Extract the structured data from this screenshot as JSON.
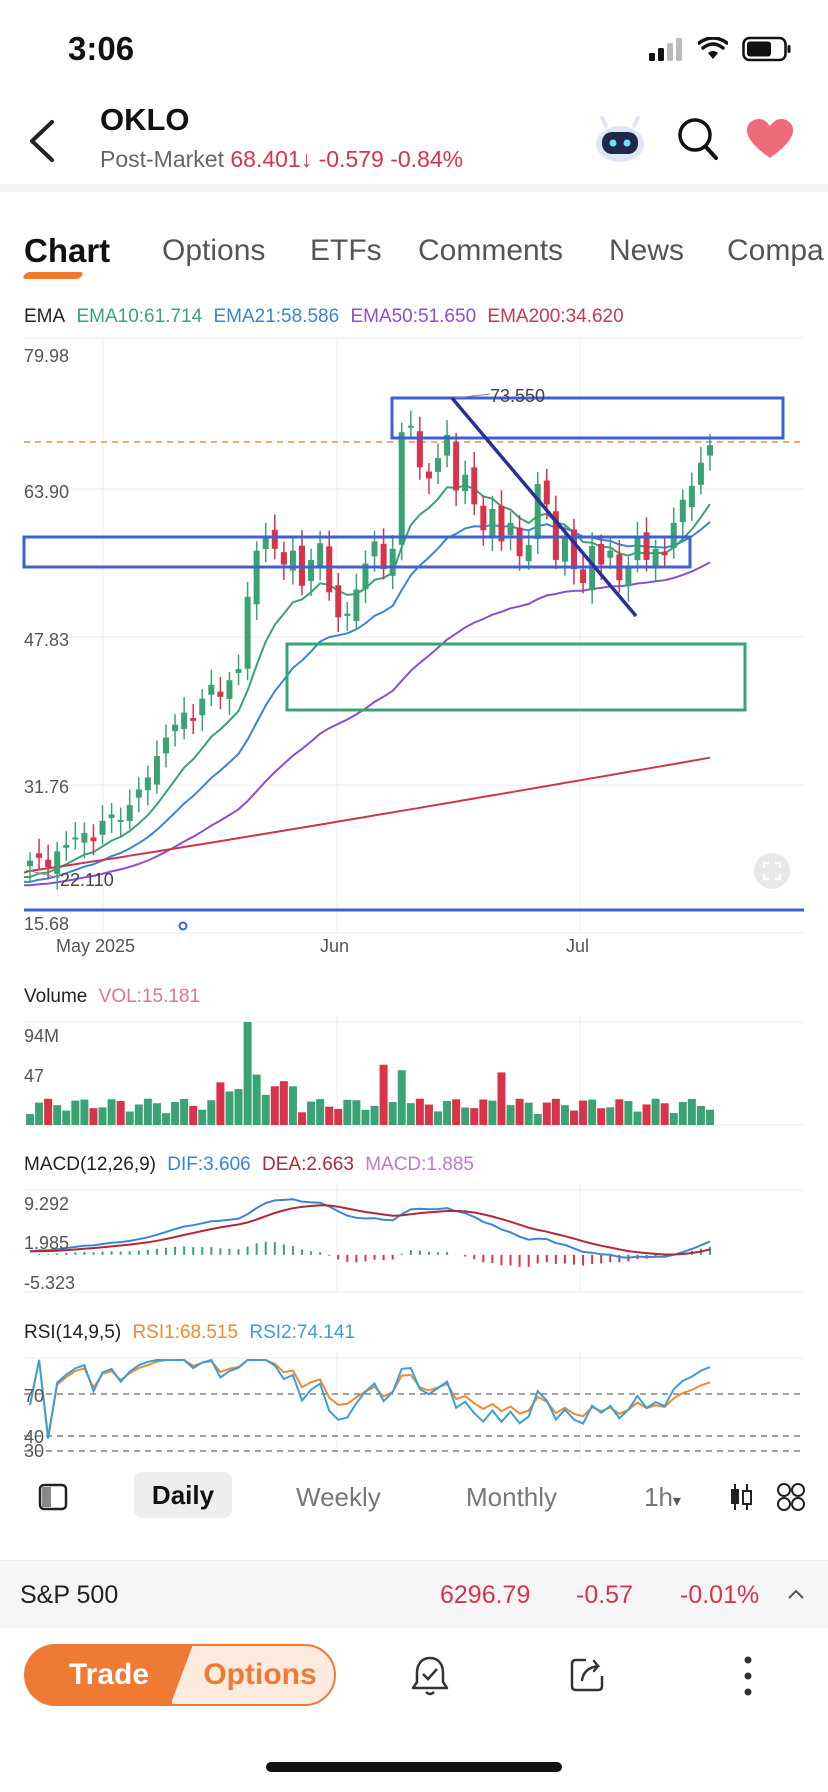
{
  "status": {
    "time": "3:06"
  },
  "header": {
    "ticker": "OKLO",
    "session_label": "Post-Market",
    "price": "68.401",
    "change": "-0.579",
    "change_pct": "-0.84%"
  },
  "tabs": [
    "Chart",
    "Options",
    "ETFs",
    "Comments",
    "News",
    "Compa"
  ],
  "ema": {
    "label": "EMA",
    "ema10": "EMA10:61.714",
    "ema21": "EMA21:58.586",
    "ema50": "EMA50:51.650",
    "ema200": "EMA200:34.620"
  },
  "price_axis": [
    "79.98",
    "63.90",
    "47.83",
    "31.76",
    "15.68"
  ],
  "date_axis": [
    "May 2025",
    "Jun",
    "Jul"
  ],
  "annotations": {
    "high": "73.550",
    "low": "22.110"
  },
  "volume": {
    "label": "Volume",
    "vol": "VOL:15.181",
    "axis": [
      "94M",
      "47"
    ]
  },
  "macd": {
    "label": "MACD(12,26,9)",
    "dif": "DIF:3.606",
    "dea": "DEA:2.663",
    "macd": "MACD:1.885",
    "axis": [
      "9.292",
      "1.985",
      "-5.323"
    ]
  },
  "rsi": {
    "label": "RSI(14,9,5)",
    "rsi1": "RSI1:68.515",
    "rsi2": "RSI2:74.141",
    "axis": [
      "70",
      "40",
      "30"
    ]
  },
  "periods": {
    "active": "Daily",
    "weekly": "Weekly",
    "monthly": "Monthly",
    "intraday": "1h"
  },
  "index_bar": {
    "name": "S&P 500",
    "value": "6296.79",
    "change": "-0.57",
    "change_pct": "-0.01%"
  },
  "actions": {
    "trade": "Trade",
    "options": "Options"
  },
  "colors": {
    "up": "#3aa374",
    "down": "#d8334a",
    "ema10": "#3aa374",
    "ema21": "#3a86d6",
    "ema50": "#8a4fd0",
    "ema200": "#c8384c",
    "accent": "#ee7a34"
  },
  "chart_data": {
    "type": "line",
    "candles_close": [
      23.5,
      23.8,
      22.8,
      24.5,
      25.2,
      26.0,
      26.5,
      25.6,
      27.8,
      28.5,
      27.9,
      29.5,
      31.2,
      32.5,
      34.8,
      36.8,
      38.2,
      39.5,
      38.6,
      41.0,
      42.5,
      41.2,
      43.0,
      44.2,
      52.0,
      57.0,
      58.5,
      57.2,
      55.5,
      57.0,
      53.2,
      56.0,
      57.8,
      52.5,
      49.8,
      50.2,
      52.8,
      55.6,
      58.0,
      55.0,
      57.2,
      69.8,
      70.5,
      66.0,
      64.8,
      67.0,
      69.5,
      63.5,
      65.2,
      62.0,
      59.2,
      61.5,
      58.0,
      60.0,
      56.4,
      57.6,
      64.2,
      62.0,
      56.0,
      58.5,
      55.0,
      53.5,
      57.5,
      55.5,
      57.0,
      53.8,
      55.4,
      58.5,
      56.0,
      57.2,
      56.5,
      60.0,
      62.5,
      64.0,
      66.5,
      68.4
    ]
  }
}
